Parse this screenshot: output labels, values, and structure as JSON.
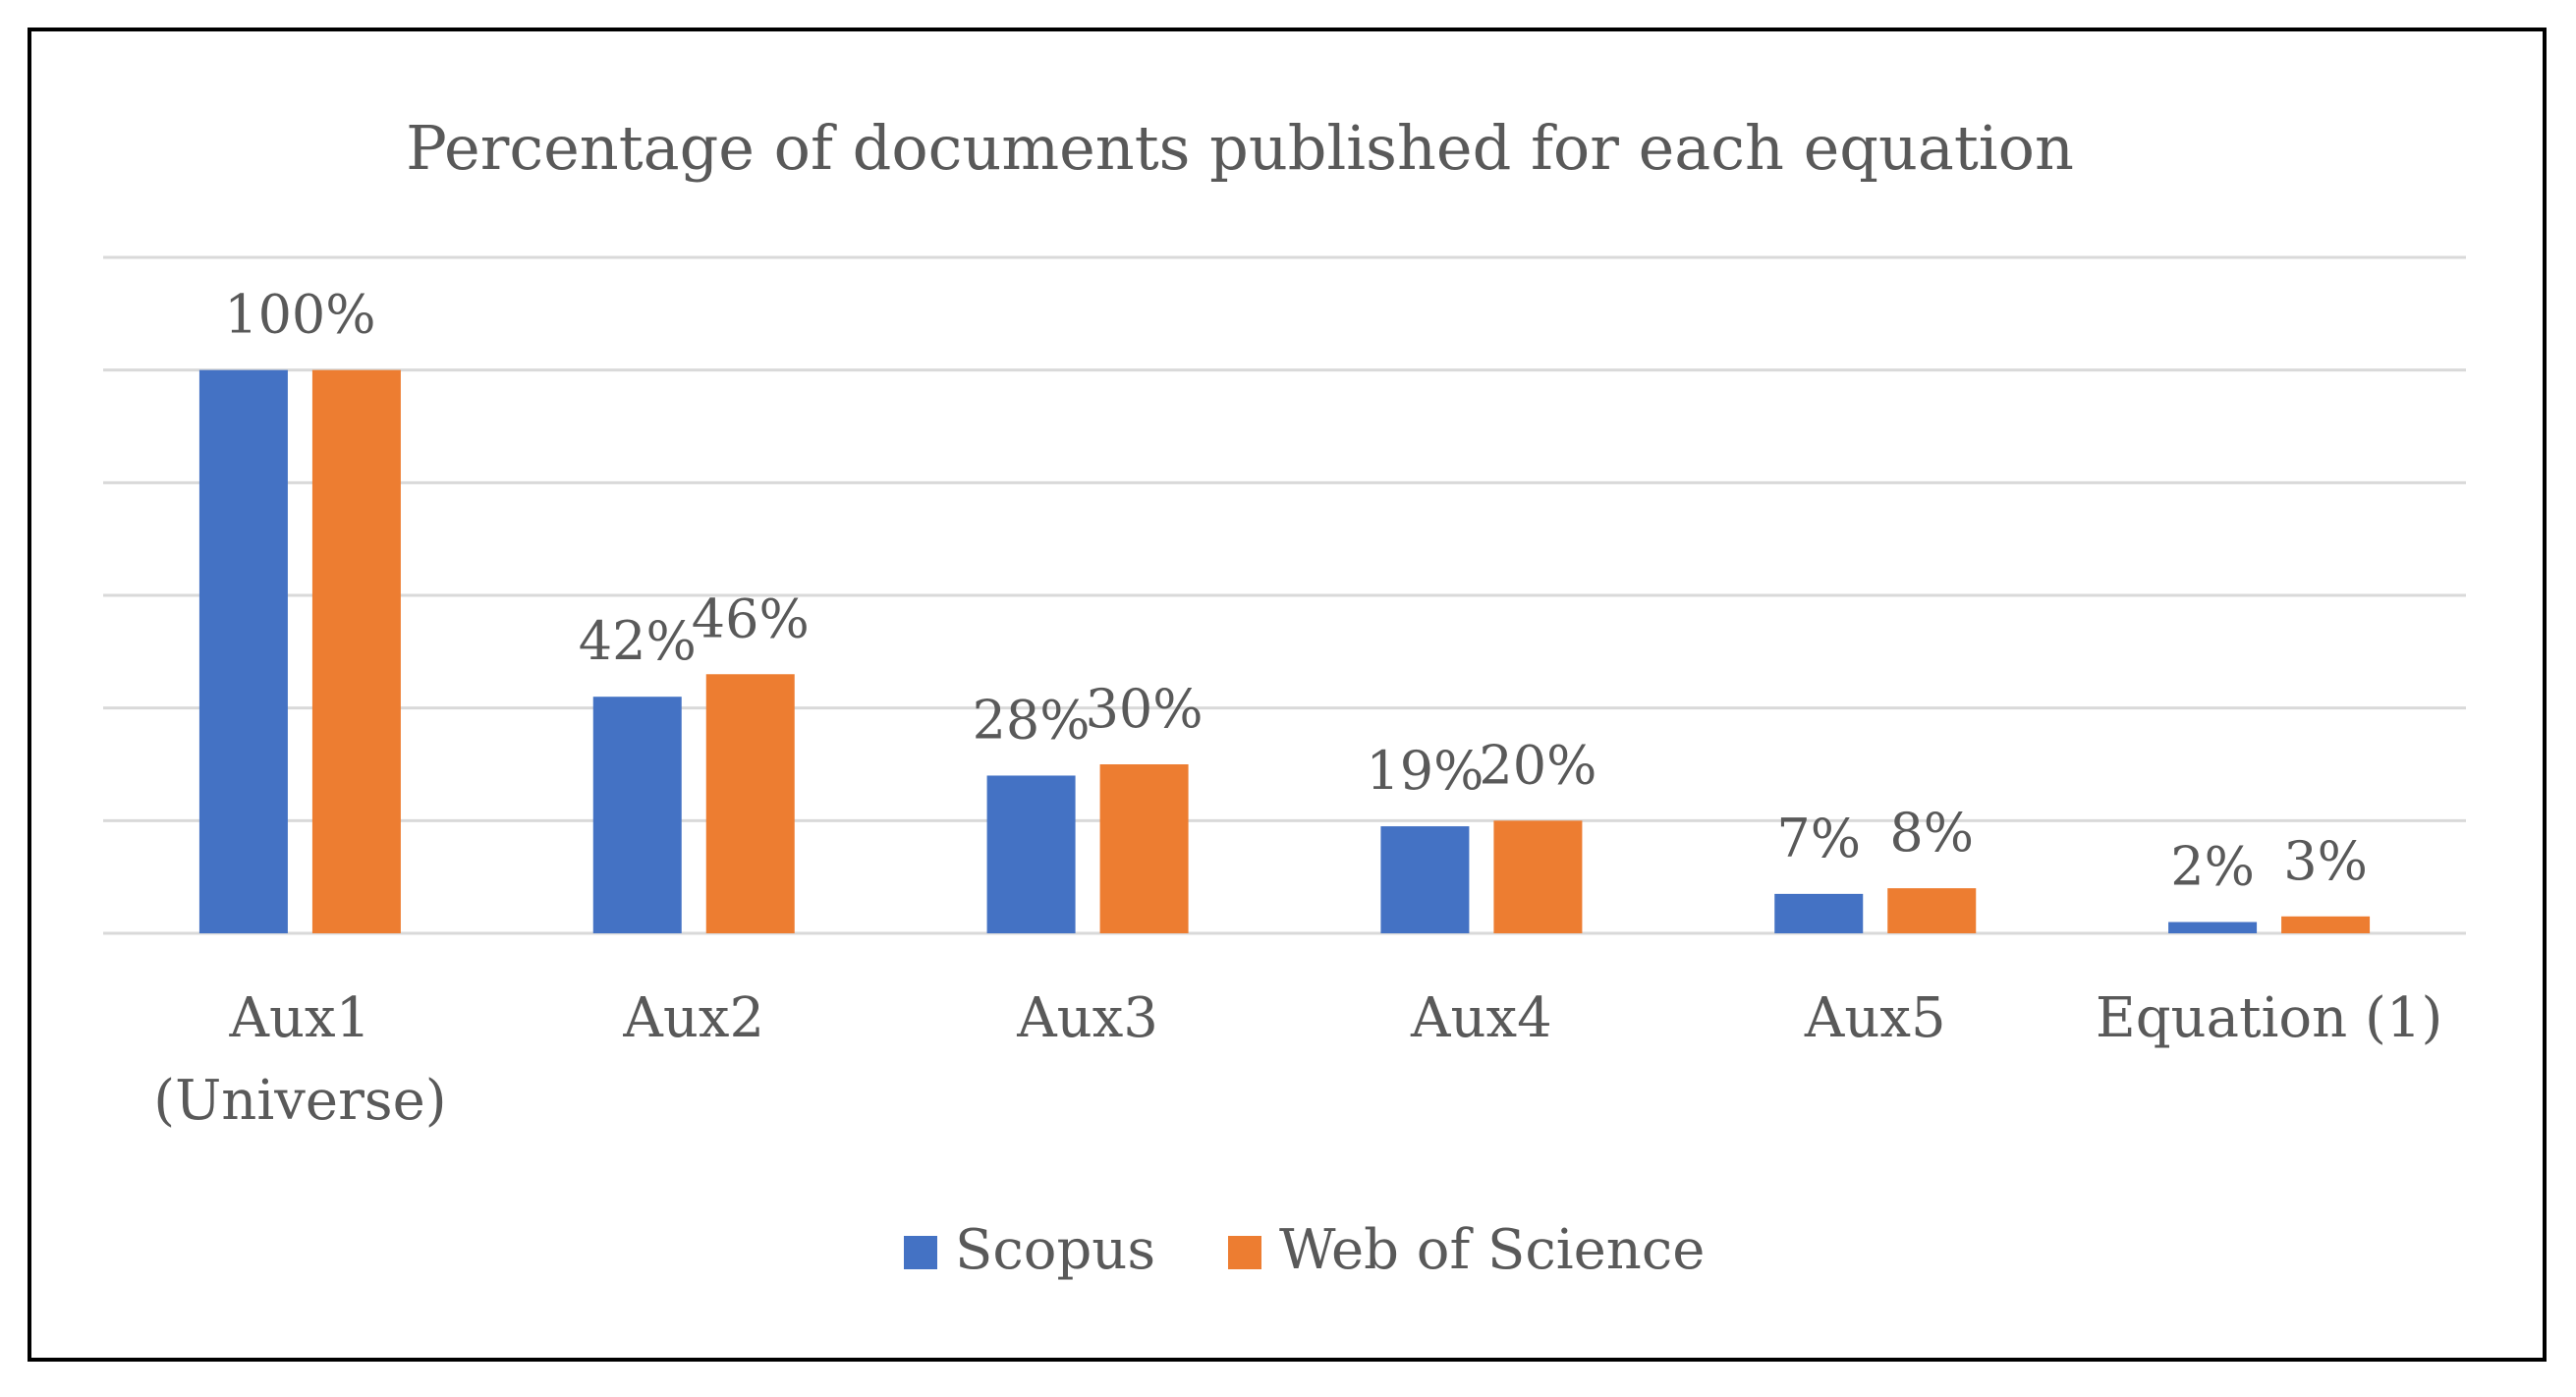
{
  "chart_data": {
    "type": "bar",
    "title": "Percentage of documents published for each equation",
    "categories": [
      [
        "Aux1",
        "(Universe)"
      ],
      [
        "Aux2"
      ],
      [
        "Aux3"
      ],
      [
        "Aux4"
      ],
      [
        "Aux5"
      ],
      [
        "Equation (1)"
      ]
    ],
    "series": [
      {
        "name": "Scopus",
        "color": "#4472C4",
        "values": [
          100,
          42,
          28,
          19,
          7,
          2
        ],
        "labels": [
          "100%",
          "42%",
          "28%",
          "19%",
          "7%",
          "2%"
        ]
      },
      {
        "name": "Web of Science",
        "color": "#ED7D31",
        "values": [
          100,
          46,
          30,
          20,
          8,
          3
        ],
        "labels": [
          "",
          "46%",
          "30%",
          "20%",
          "8%",
          "3%"
        ]
      }
    ],
    "ylim": [
      0,
      120
    ],
    "grid": true,
    "legend": "bottom",
    "xlabel": "",
    "ylabel": ""
  }
}
